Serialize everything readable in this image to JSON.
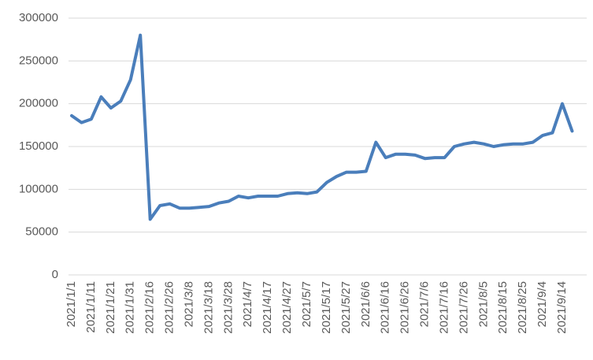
{
  "chart_data": {
    "type": "line",
    "categories": [
      "2021/1/1",
      null,
      "2021/1/11",
      null,
      "2021/1/21",
      null,
      "2021/1/31",
      null,
      "2021/2/16",
      null,
      "2021/2/26",
      null,
      "2021/3/8",
      null,
      "2021/3/18",
      null,
      "2021/3/28",
      null,
      "2021/4/7",
      null,
      "2021/4/17",
      null,
      "2021/4/27",
      null,
      "2021/5/7",
      null,
      "2021/5/17",
      null,
      "2021/5/27",
      null,
      "2021/6/6",
      null,
      "2021/6/16",
      null,
      "2021/6/26",
      null,
      "2021/7/6",
      null,
      "2021/7/16",
      null,
      "2021/7/26",
      null,
      "2021/8/5",
      null,
      "2021/8/15",
      null,
      "2021/8/25",
      null,
      "2021/9/4",
      null,
      "2021/9/14",
      null
    ],
    "values": [
      186000,
      178000,
      182000,
      208000,
      195000,
      203000,
      228000,
      280000,
      65000,
      81000,
      83000,
      78000,
      78000,
      79000,
      80000,
      84000,
      86000,
      92000,
      90000,
      92000,
      92000,
      92000,
      95000,
      96000,
      95000,
      97000,
      108000,
      115000,
      120000,
      120000,
      121000,
      155000,
      137000,
      141000,
      141000,
      140000,
      136000,
      137000,
      137000,
      150000,
      153000,
      155000,
      153000,
      150000,
      152000,
      153000,
      153000,
      155000,
      163000,
      166000,
      200000,
      168000
    ],
    "color": "#4a7ebb",
    "ylim": [
      0,
      300000
    ],
    "yticks": [
      0,
      50000,
      100000,
      150000,
      200000,
      250000,
      300000
    ],
    "grid": true
  }
}
